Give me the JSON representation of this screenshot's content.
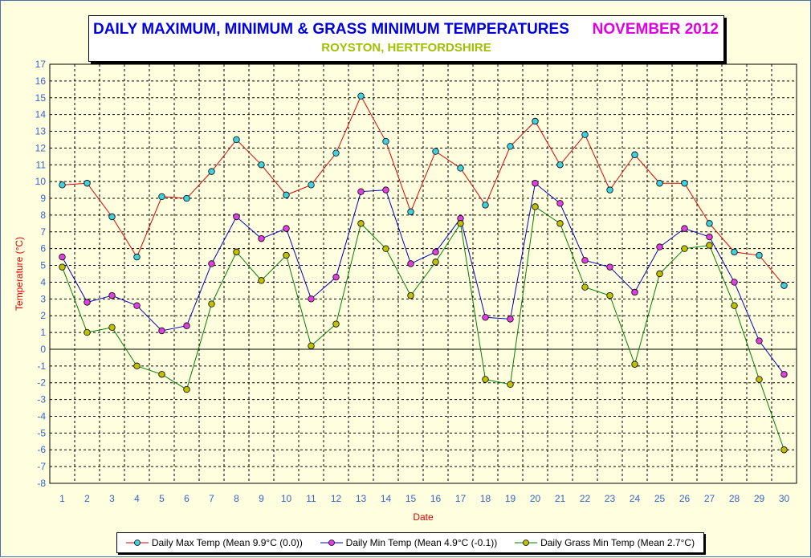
{
  "title": {
    "main": "DAILY MAXIMUM, MINIMUM & GRASS MINIMUM TEMPERATURES",
    "month": "NOVEMBER 2012",
    "subtitle": "ROYSTON, HERTFORDSHIRE"
  },
  "colors": {
    "background": "#ffffe0",
    "title_main": "#0000e0",
    "title_month": "#e000e0",
    "subtitle": "#a0c000",
    "axis_label": "#e00000",
    "tick_label": "#3366cc"
  },
  "chart_data": {
    "type": "line",
    "title": "DAILY MAXIMUM, MINIMUM & GRASS MINIMUM TEMPERATURES",
    "subtitle": "ROYSTON, HERTFORDSHIRE",
    "xlabel": "Date",
    "ylabel": "Temperature (°C)",
    "xlim": [
      1,
      30
    ],
    "ylim": [
      -8,
      17
    ],
    "x_ticks": [
      1,
      2,
      3,
      4,
      5,
      6,
      7,
      8,
      9,
      10,
      11,
      12,
      13,
      14,
      15,
      16,
      17,
      18,
      19,
      20,
      21,
      22,
      23,
      24,
      25,
      26,
      27,
      28,
      29,
      30
    ],
    "y_ticks": [
      17,
      16,
      15,
      14,
      13,
      12,
      11,
      10,
      9,
      8,
      7,
      6,
      5,
      4,
      3,
      2,
      1,
      0,
      -1,
      -2,
      -3,
      -4,
      -5,
      -6,
      -7,
      -8
    ],
    "grid": true,
    "legend_position": "bottom",
    "x": [
      1,
      2,
      3,
      4,
      5,
      6,
      7,
      8,
      9,
      10,
      11,
      12,
      13,
      14,
      15,
      16,
      17,
      18,
      19,
      20,
      21,
      22,
      23,
      24,
      25,
      26,
      27,
      28,
      29,
      30
    ],
    "series": [
      {
        "name": "Daily Max Temp (Mean 9.9°C (0.0))",
        "line_color": "#e00000",
        "marker_color": "#40d0e0",
        "values": [
          9.8,
          9.9,
          7.9,
          5.5,
          9.1,
          9.0,
          10.6,
          12.5,
          11.0,
          9.2,
          9.8,
          11.7,
          15.1,
          12.4,
          8.2,
          11.8,
          10.8,
          8.6,
          12.1,
          13.6,
          11.0,
          12.8,
          9.5,
          11.6,
          9.9,
          9.9,
          7.5,
          5.8,
          5.6,
          3.8
        ]
      },
      {
        "name": "Daily Min Temp (Mean 4.9°C (-0.1))",
        "line_color": "#0000c0",
        "marker_color": "#e040e0",
        "values": [
          5.5,
          2.8,
          3.2,
          2.6,
          1.1,
          1.4,
          5.1,
          7.9,
          6.6,
          7.2,
          3.0,
          4.3,
          9.4,
          9.5,
          5.1,
          5.8,
          7.8,
          1.9,
          1.8,
          9.9,
          8.7,
          5.3,
          4.9,
          3.4,
          6.1,
          7.2,
          6.7,
          4.0,
          0.5,
          -1.5
        ]
      },
      {
        "name": "Daily Grass Min Temp (Mean 2.7°C)",
        "line_color": "#008000",
        "marker_color": "#c0c000",
        "values": [
          4.9,
          1.0,
          1.3,
          -1.0,
          -1.5,
          -2.4,
          2.7,
          5.8,
          4.1,
          5.6,
          0.2,
          1.5,
          7.5,
          6.0,
          3.2,
          5.2,
          7.5,
          -1.8,
          -2.1,
          8.5,
          7.5,
          3.7,
          3.2,
          -0.9,
          4.5,
          6.0,
          6.2,
          2.6,
          -1.8,
          -6.0
        ]
      }
    ]
  }
}
